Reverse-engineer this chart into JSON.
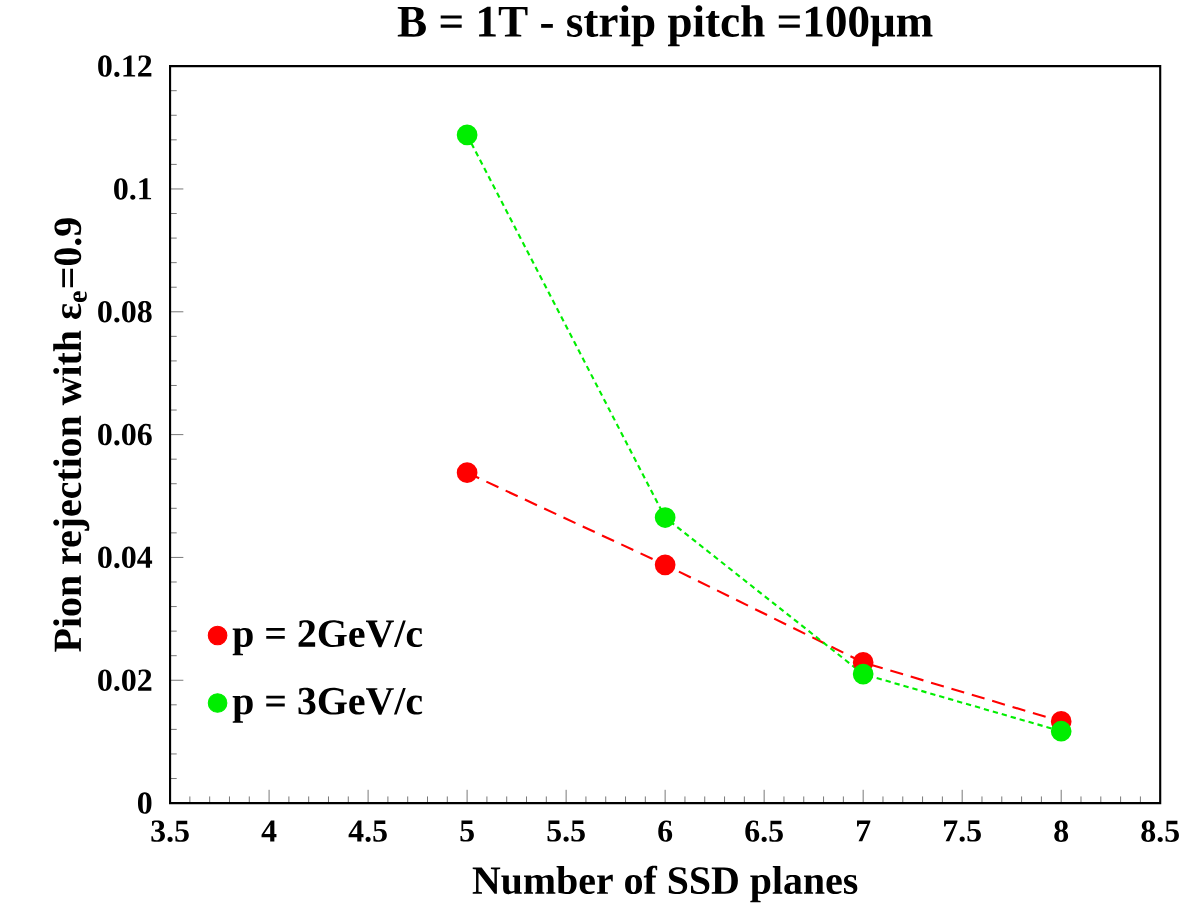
{
  "chart_data": {
    "type": "line",
    "title": "**B = 1T - strip pitch =100μm**",
    "xlabel": "**Number of SSD planes**",
    "ylabel": "**Pion rejection with ε$_{e}$=0.9**",
    "x": [
      5,
      6,
      7,
      8
    ],
    "series": [
      {
        "name": "**p = 2GeV/c**",
        "color": "#ff0000",
        "values": [
          0.0538,
          0.0388,
          0.0229,
          0.0133
        ],
        "line_style": "dashed"
      },
      {
        "name": "**p = 3GeV/c**",
        "color": "#00ee00",
        "values": [
          0.1088,
          0.0465,
          0.021,
          0.0117
        ],
        "line_style": "dotted"
      }
    ],
    "xlim": [
      3.5,
      8.5
    ],
    "ylim": [
      0,
      0.12
    ],
    "xticks": [
      3.5,
      4,
      4.5,
      5,
      5.5,
      6,
      6.5,
      7,
      7.5,
      8,
      8.5
    ],
    "yticks": [
      0,
      0.02,
      0.04,
      0.06,
      0.08,
      0.1,
      0.12
    ],
    "marker": "circle",
    "legend": "bottom left",
    "grid": false
  }
}
